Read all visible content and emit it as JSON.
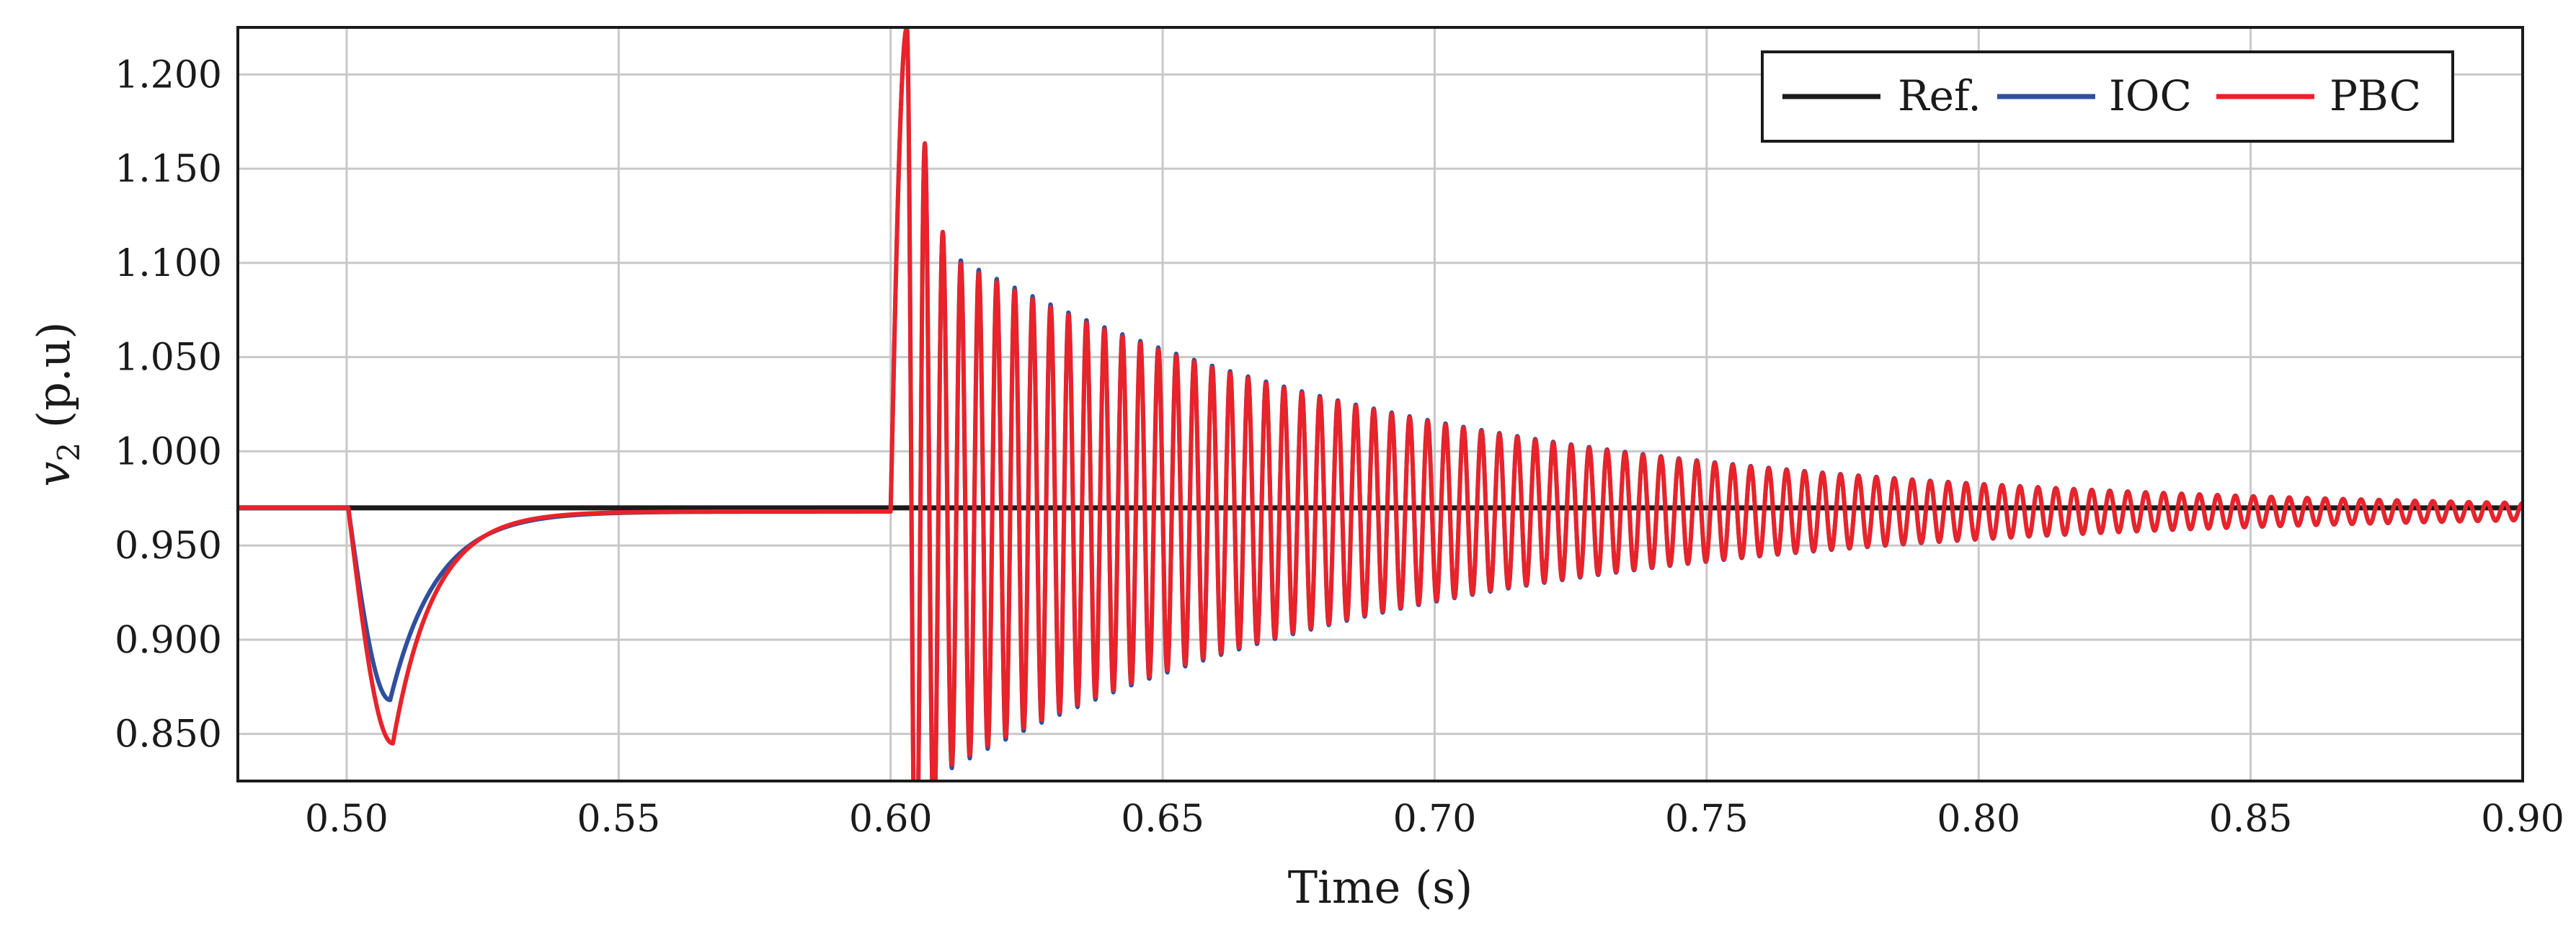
{
  "chart_data": {
    "type": "line",
    "xlabel": "Time (s)",
    "ylabel_main": "v",
    "ylabel_sub": "2",
    "ylabel_unit": " (p.u)",
    "xlim": [
      0.48,
      0.9
    ],
    "ylim": [
      0.825,
      1.225
    ],
    "xticks": [
      0.5,
      0.55,
      0.6,
      0.65,
      0.7,
      0.75,
      0.8,
      0.85,
      0.9
    ],
    "xtick_labels": [
      "0.50",
      "0.55",
      "0.60",
      "0.65",
      "0.70",
      "0.75",
      "0.80",
      "0.85",
      "0.90"
    ],
    "yticks": [
      0.85,
      0.9,
      0.95,
      1.0,
      1.05,
      1.1,
      1.15,
      1.2
    ],
    "ytick_labels": [
      "0.850",
      "0.900",
      "0.950",
      "1.000",
      "1.050",
      "1.100",
      "1.150",
      "1.200"
    ],
    "grid": true,
    "legend_position": "top-right",
    "series": [
      {
        "name": "Ref.",
        "color": "#1a1a1a",
        "model": {
          "base": 0.97,
          "step": null
        }
      },
      {
        "name": "IOC",
        "color": "#2f4f9e",
        "model": {
          "base": 0.97,
          "dip_time": 0.5003,
          "dip_min": 0.868,
          "dip_min_time": 0.508,
          "dip_recovery_tau": 0.0085,
          "settle_value": 0.968,
          "step_time": 0.6,
          "first_peak": 1.225,
          "osc_period": 0.0033,
          "osc_amp_start": 0.15,
          "osc_decay_tau": 0.085,
          "osc_center": 0.968
        }
      },
      {
        "name": "PBC",
        "color": "#e8232a",
        "model": {
          "base": 0.97,
          "dip_time": 0.5003,
          "dip_min": 0.845,
          "dip_min_time": 0.5085,
          "dip_recovery_tau": 0.0075,
          "settle_value": 0.968,
          "step_time": 0.6,
          "first_peak": 1.225,
          "osc_period": 0.0033,
          "osc_amp_start": 0.148,
          "osc_decay_tau": 0.085,
          "osc_center": 0.968
        }
      }
    ]
  }
}
